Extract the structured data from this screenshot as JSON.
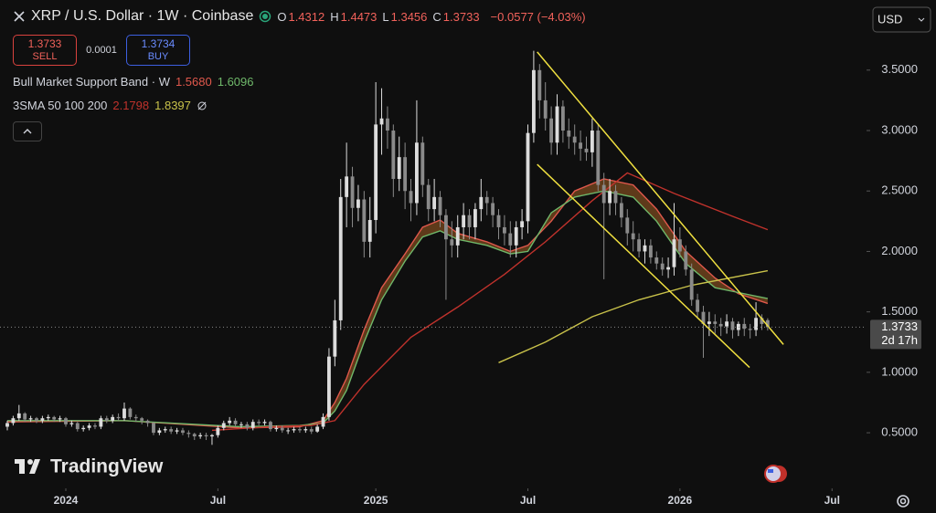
{
  "chart_data": {
    "type": "candlestick",
    "title": "XRP / U.S. Dollar · 1W · Coinbase",
    "ohlc_readout": [
      {
        "label": "O",
        "value": "1.4312"
      },
      {
        "label": "H",
        "value": "1.4473"
      },
      {
        "label": "L",
        "value": "1.3456"
      },
      {
        "label": "C",
        "value": "1.3733"
      }
    ],
    "change": "−0.0577 (−4.03%)",
    "sell": {
      "price": "1.3733",
      "label": "SELL"
    },
    "spread": "0.0001",
    "buy": {
      "price": "1.3734",
      "label": "BUY"
    },
    "currency": "USD",
    "watermark": "TradingView",
    "up_color": "#dcdcdc",
    "down_color": "#8a8a8a",
    "open": [
      0.55,
      0.58,
      0.62,
      0.66,
      0.61,
      0.62,
      0.6,
      0.62,
      0.63,
      0.61,
      0.62,
      0.57,
      0.58,
      0.53,
      0.54,
      0.56,
      0.55,
      0.62,
      0.6,
      0.63,
      0.62,
      0.7,
      0.63,
      0.62,
      0.6,
      0.58,
      0.5,
      0.52,
      0.53,
      0.51,
      0.52,
      0.5,
      0.49,
      0.47,
      0.48,
      0.47,
      0.48,
      0.54,
      0.58,
      0.6,
      0.57,
      0.57,
      0.54,
      0.59,
      0.58,
      0.59,
      0.53,
      0.54,
      0.52,
      0.52,
      0.53,
      0.52,
      0.53,
      0.51,
      0.55,
      0.63,
      1.13,
      1.43,
      2.45,
      2.62,
      2.36,
      2.43,
      2.08,
      2.26,
      3.05,
      3.1,
      3.0,
      2.6,
      2.78,
      2.5,
      2.4,
      2.9,
      2.55,
      2.35,
      2.45,
      2.3,
      2.1,
      2.05,
      2.2,
      2.3,
      2.2,
      2.35,
      2.45,
      2.4,
      2.3,
      2.2,
      2.15,
      2.05,
      2.2,
      2.25,
      2.98,
      3.5,
      3.25,
      3.1,
      2.9,
      3.2,
      3.0,
      2.95,
      2.9,
      2.85,
      2.82,
      3.0,
      2.55,
      2.4,
      2.5,
      2.4,
      2.28,
      2.15,
      2.1,
      2.0,
      2.05,
      1.95,
      1.9,
      1.85,
      1.87,
      2.1,
      2.0,
      1.85,
      1.6,
      1.5,
      1.4,
      1.42,
      1.4,
      1.38,
      1.42,
      1.35,
      1.4,
      1.36,
      1.35,
      1.45,
      1.4312
    ],
    "high": [
      0.6,
      0.64,
      0.73,
      0.67,
      0.64,
      0.63,
      0.64,
      0.65,
      0.64,
      0.64,
      0.63,
      0.6,
      0.59,
      0.56,
      0.58,
      0.58,
      0.64,
      0.64,
      0.65,
      0.66,
      0.75,
      0.71,
      0.65,
      0.63,
      0.61,
      0.59,
      0.54,
      0.55,
      0.55,
      0.54,
      0.54,
      0.52,
      0.5,
      0.5,
      0.5,
      0.49,
      0.56,
      0.6,
      0.63,
      0.62,
      0.59,
      0.59,
      0.61,
      0.61,
      0.61,
      0.6,
      0.56,
      0.56,
      0.54,
      0.55,
      0.55,
      0.55,
      0.55,
      0.57,
      0.66,
      1.2,
      1.6,
      2.6,
      2.9,
      2.7,
      2.55,
      2.5,
      2.45,
      3.4,
      3.35,
      3.2,
      3.05,
      2.95,
      2.9,
      2.6,
      3.25,
      2.95,
      2.6,
      2.6,
      2.5,
      2.35,
      2.25,
      2.3,
      2.4,
      2.35,
      2.4,
      2.6,
      2.5,
      2.45,
      2.35,
      2.3,
      2.25,
      2.25,
      2.35,
      3.05,
      3.66,
      3.55,
      3.4,
      3.2,
      3.3,
      3.25,
      3.1,
      3.05,
      3.0,
      2.95,
      3.1,
      3.05,
      2.65,
      2.6,
      2.55,
      2.45,
      2.35,
      2.25,
      2.15,
      2.1,
      2.1,
      2.0,
      1.95,
      1.95,
      2.4,
      2.2,
      2.05,
      1.9,
      1.65,
      1.55,
      1.5,
      1.48,
      1.45,
      1.48,
      1.45,
      1.42,
      1.45,
      1.4,
      1.58,
      1.48,
      1.4473
    ],
    "low": [
      0.52,
      0.56,
      0.6,
      0.59,
      0.59,
      0.58,
      0.58,
      0.6,
      0.59,
      0.59,
      0.55,
      0.55,
      0.51,
      0.51,
      0.52,
      0.53,
      0.53,
      0.58,
      0.58,
      0.6,
      0.6,
      0.61,
      0.59,
      0.57,
      0.55,
      0.48,
      0.48,
      0.5,
      0.49,
      0.49,
      0.48,
      0.46,
      0.44,
      0.45,
      0.44,
      0.4,
      0.46,
      0.52,
      0.56,
      0.55,
      0.54,
      0.52,
      0.52,
      0.56,
      0.56,
      0.51,
      0.51,
      0.5,
      0.49,
      0.5,
      0.5,
      0.5,
      0.49,
      0.5,
      0.53,
      0.6,
      1.05,
      1.35,
      2.2,
      2.2,
      2.25,
      1.95,
      1.95,
      2.15,
      2.8,
      2.85,
      2.45,
      2.5,
      2.35,
      2.25,
      2.3,
      2.45,
      2.25,
      2.25,
      2.2,
      1.6,
      1.95,
      1.95,
      2.1,
      2.1,
      2.1,
      2.25,
      2.3,
      2.2,
      2.1,
      2.05,
      1.95,
      1.95,
      2.1,
      2.15,
      2.9,
      3.1,
      3.0,
      2.8,
      2.8,
      2.9,
      2.85,
      2.8,
      2.75,
      2.75,
      2.7,
      2.5,
      1.77,
      2.3,
      2.3,
      2.2,
      2.05,
      2.0,
      1.95,
      1.9,
      1.9,
      1.85,
      1.8,
      1.78,
      1.8,
      1.95,
      1.8,
      1.55,
      1.45,
      1.12,
      1.3,
      1.32,
      1.3,
      1.32,
      1.28,
      1.3,
      1.3,
      1.28,
      1.3,
      1.35,
      1.3456
    ],
    "close": [
      0.58,
      0.62,
      0.66,
      0.61,
      0.62,
      0.6,
      0.62,
      0.63,
      0.61,
      0.62,
      0.57,
      0.58,
      0.53,
      0.54,
      0.56,
      0.55,
      0.62,
      0.6,
      0.63,
      0.62,
      0.7,
      0.63,
      0.62,
      0.6,
      0.58,
      0.5,
      0.52,
      0.53,
      0.51,
      0.52,
      0.5,
      0.49,
      0.47,
      0.48,
      0.47,
      0.48,
      0.54,
      0.58,
      0.6,
      0.57,
      0.57,
      0.54,
      0.59,
      0.58,
      0.59,
      0.53,
      0.54,
      0.52,
      0.52,
      0.53,
      0.52,
      0.53,
      0.51,
      0.55,
      0.63,
      1.13,
      1.43,
      2.45,
      2.62,
      2.36,
      2.43,
      2.08,
      2.26,
      3.05,
      3.1,
      3.0,
      2.6,
      2.78,
      2.5,
      2.4,
      2.9,
      2.55,
      2.35,
      2.45,
      2.3,
      2.1,
      2.05,
      2.2,
      2.3,
      2.2,
      2.35,
      2.45,
      2.4,
      2.3,
      2.2,
      2.15,
      2.05,
      2.2,
      2.25,
      2.98,
      3.5,
      3.25,
      3.1,
      2.9,
      3.2,
      3.0,
      2.95,
      2.9,
      2.85,
      2.82,
      3.0,
      2.55,
      2.4,
      2.5,
      2.4,
      2.28,
      2.15,
      2.1,
      2.0,
      2.05,
      1.95,
      1.9,
      1.85,
      1.87,
      2.1,
      2.0,
      1.85,
      1.6,
      1.5,
      1.4,
      1.42,
      1.4,
      1.38,
      1.42,
      1.35,
      1.4,
      1.36,
      1.35,
      1.45,
      1.4,
      1.3733
    ],
    "last_price": 1.3733,
    "countdown": "2d 17h",
    "indicators": [
      {
        "name": "Bull Market Support Band · W",
        "readouts": [
          "1.5680",
          "1.6096"
        ],
        "fill": "rgba(190,110,40,0.45)",
        "lines": [
          {
            "color": "#e0584c",
            "x": [
              0,
              20,
              40,
              50,
              54,
              56,
              58,
              61,
              64,
              68,
              71,
              74,
              77,
              82,
              86,
              89,
              93,
              97,
              102,
              107,
              111,
              116,
              121,
              125,
              130
            ],
            "values": [
              0.59,
              0.6,
              0.54,
              0.55,
              0.6,
              0.75,
              0.95,
              1.35,
              1.7,
              1.98,
              2.2,
              2.26,
              2.15,
              2.08,
              2.0,
              2.05,
              2.25,
              2.5,
              2.6,
              2.55,
              2.35,
              2.0,
              1.78,
              1.65,
              1.57
            ]
          },
          {
            "color": "#6fb86a",
            "x": [
              0,
              20,
              40,
              50,
              54,
              56,
              58,
              61,
              64,
              68,
              71,
              74,
              77,
              82,
              86,
              89,
              93,
              97,
              102,
              107,
              111,
              116,
              121,
              125,
              130
            ],
            "values": [
              0.6,
              0.6,
              0.55,
              0.56,
              0.58,
              0.68,
              0.85,
              1.25,
              1.6,
              1.92,
              2.12,
              2.17,
              2.1,
              2.05,
              1.98,
              2.0,
              2.32,
              2.45,
              2.5,
              2.45,
              2.25,
              1.9,
              1.7,
              1.66,
              1.61
            ]
          }
        ]
      },
      {
        "name": "3SMA 50 100 200",
        "readouts": [
          "2.1798",
          "1.8397"
        ],
        "lines": [
          {
            "color": "#c0322c",
            "x": [
              35,
              45,
              52,
              56,
              61,
              69,
              77,
              85,
              92,
              100,
              106,
              114,
              124,
              130
            ],
            "values": [
              0.52,
              0.55,
              0.56,
              0.6,
              0.9,
              1.29,
              1.54,
              1.81,
              2.08,
              2.42,
              2.65,
              2.48,
              2.29,
              2.18
            ]
          },
          {
            "color": "#c9c24a",
            "x": [
              84,
              92,
              100,
              108,
              117,
              130
            ],
            "values": [
              1.08,
              1.25,
              1.46,
              1.6,
              1.72,
              1.84
            ]
          }
        ]
      }
    ],
    "drawings": [
      {
        "color": "#f0e040",
        "x": [
          90.6,
          132.7
        ],
        "values": [
          3.65,
          1.23
        ]
      },
      {
        "color": "#f0e040",
        "x": [
          90.6,
          126.9
        ],
        "values": [
          2.72,
          1.04
        ]
      }
    ],
    "xlim": [
      -1.25,
      146.9
    ],
    "ylim": [
      0.04,
      4.08
    ],
    "xticks": [
      {
        "value": 10,
        "label": "2024"
      },
      {
        "value": 36,
        "label": "Jul"
      },
      {
        "value": 63,
        "label": "2025"
      },
      {
        "value": 89,
        "label": "Jul"
      },
      {
        "value": 115,
        "label": "2026"
      },
      {
        "value": 141,
        "label": "Jul"
      }
    ],
    "yticks": [
      {
        "value": 0.5,
        "label": "0.5000"
      },
      {
        "value": 1.0,
        "label": "1.0000"
      },
      {
        "value": 1.5,
        "label": "1.5000"
      },
      {
        "value": 2.0,
        "label": "2.0000"
      },
      {
        "value": 2.5,
        "label": "2.5000"
      },
      {
        "value": 3.0,
        "label": "3.0000"
      },
      {
        "value": 3.5,
        "label": "3.5000"
      }
    ]
  }
}
